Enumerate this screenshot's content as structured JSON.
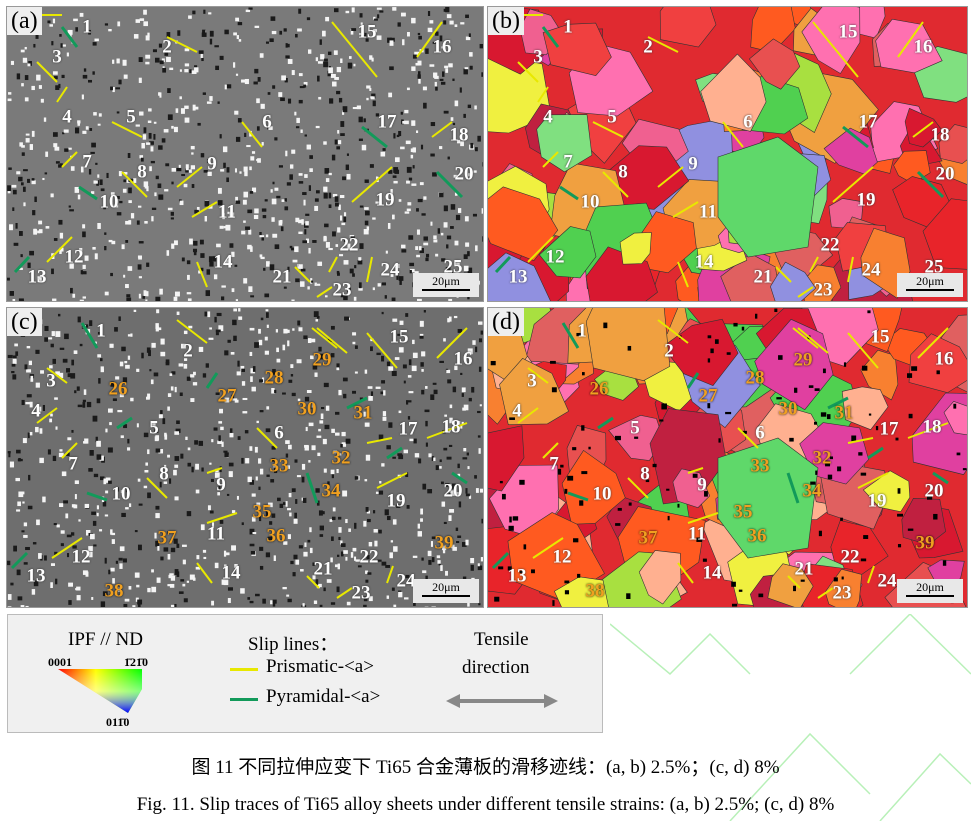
{
  "panels": [
    {
      "label": "(a)",
      "type": "SEM",
      "scale": "20μm",
      "numbers": [
        "1",
        "2",
        "3",
        "4",
        "5",
        "6",
        "7",
        "8",
        "9",
        "10",
        "11",
        "12",
        "13",
        "14",
        "15",
        "16",
        "17",
        "18",
        "19",
        "20",
        "21",
        "22",
        "23",
        "24",
        "25"
      ]
    },
    {
      "label": "(b)",
      "type": "IPF map",
      "scale": "20μm",
      "numbers": [
        "1",
        "2",
        "3",
        "4",
        "5",
        "6",
        "7",
        "8",
        "9",
        "10",
        "11",
        "12",
        "13",
        "14",
        "15",
        "16",
        "17",
        "18",
        "19",
        "20",
        "21",
        "22",
        "23",
        "24",
        "25"
      ]
    },
    {
      "label": "(c)",
      "type": "SEM",
      "scale": "20μm",
      "numbers": [
        "1",
        "2",
        "3",
        "4",
        "5",
        "6",
        "7",
        "8",
        "9",
        "10",
        "11",
        "12",
        "13",
        "14",
        "15",
        "16",
        "17",
        "18",
        "19",
        "20",
        "21",
        "22",
        "23",
        "24",
        "26",
        "27",
        "28",
        "29",
        "30",
        "31",
        "32",
        "33",
        "34",
        "35",
        "36",
        "37",
        "38",
        "39"
      ]
    },
    {
      "label": "(d)",
      "type": "IPF map",
      "scale": "20μm",
      "numbers": [
        "1",
        "2",
        "3",
        "4",
        "5",
        "6",
        "7",
        "8",
        "9",
        "10",
        "11",
        "12",
        "13",
        "14",
        "15",
        "16",
        "17",
        "18",
        "19",
        "20",
        "21",
        "22",
        "23",
        "24",
        "26",
        "27",
        "28",
        "29",
        "30",
        "31",
        "32",
        "33",
        "34",
        "35",
        "36",
        "37",
        "38",
        "39"
      ]
    }
  ],
  "legend": {
    "ipf_title": "IPF // ND",
    "ipf_corner_left": "0001",
    "ipf_corner_right": "1̄21̄0",
    "ipf_corner_bottom": "011̄0",
    "slip_title": "Slip lines：",
    "prismatic": "Prismatic-<a>",
    "pyramidal": "Pyramidal-<a>",
    "tensile_line1": "Tensile",
    "tensile_line2": "direction",
    "arrow_icon": "double-arrow"
  },
  "colors": {
    "prismatic": "#e8e800",
    "pyramidal": "#129a5a",
    "new_label": "#f0a020",
    "arrow": "#888888"
  },
  "caption_cn": "图 11  不同拉伸应变下 Ti65 合金薄板的滑移迹线：(a, b) 2.5%；(c, d) 8%",
  "caption_en": "Fig. 11. Slip traces of Ti65 alloy sheets under different tensile strains: (a, b) 2.5%; (c, d) 8%"
}
